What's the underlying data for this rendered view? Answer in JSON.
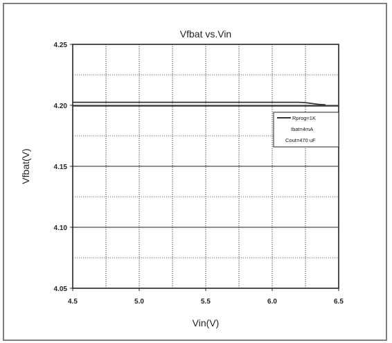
{
  "chart_data": {
    "type": "line",
    "title": "Vfbat vs.Vin",
    "xlabel": "Vin(V)",
    "ylabel": "Vfbat(V)",
    "xlim": [
      4.5,
      6.5
    ],
    "ylim": [
      4.05,
      4.25
    ],
    "x_ticks": [
      "4.5",
      "5.0",
      "5.5",
      "6.0",
      "6.5"
    ],
    "y_ticks": [
      "4.25",
      "4.20",
      "4.15",
      "4.10",
      "4.05"
    ],
    "grid": true,
    "legend_position": "right",
    "legend": [
      "Rprog=1K",
      "Ibat=4mA",
      "Cout=470 uF"
    ],
    "series": [
      {
        "name": "Rprog=1K",
        "x": [
          4.5,
          5.0,
          5.5,
          6.0,
          6.1,
          6.2,
          6.25,
          6.3,
          6.35,
          6.4
        ],
        "y": [
          4.2025,
          4.2025,
          4.2025,
          4.2025,
          4.2025,
          4.2025,
          4.2022,
          4.2015,
          4.2008,
          4.2005
        ]
      },
      {
        "name": "",
        "x": [
          4.5,
          5.0,
          5.5,
          6.0,
          6.5
        ],
        "y": [
          4.1995,
          4.1995,
          4.1995,
          4.1995,
          4.1995
        ]
      }
    ]
  }
}
